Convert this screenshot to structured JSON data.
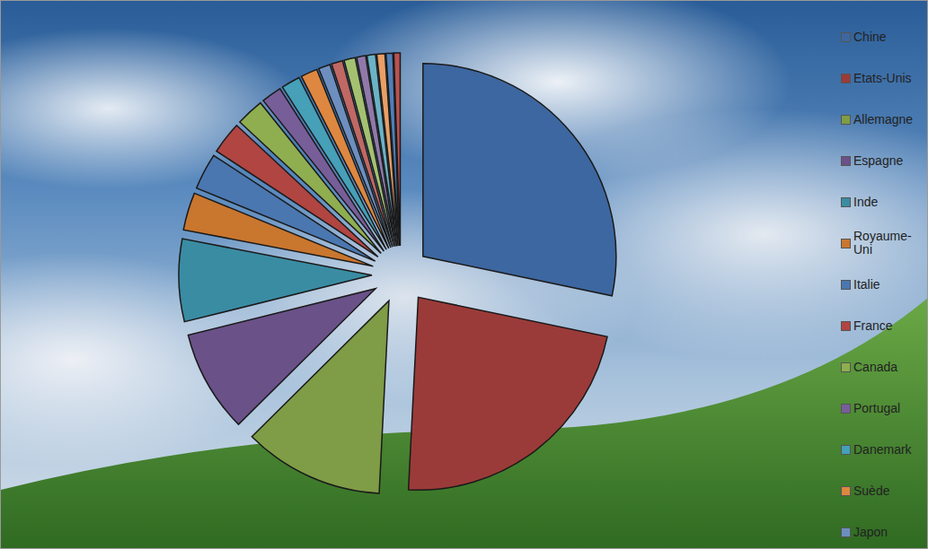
{
  "chart_data": {
    "type": "pie",
    "categories": [
      "Chine",
      "Etats-Unis",
      "Allemagne",
      "Espagne",
      "Inde",
      "Royaume-Uni",
      "Italie",
      "France",
      "Canada",
      "Portugal",
      "Danemark",
      "Suède",
      "Japon",
      null,
      null,
      null,
      null,
      null,
      null,
      null
    ],
    "values": [
      75.3,
      60.0,
      31.3,
      22.8,
      18.4,
      8.4,
      8.1,
      7.2,
      6.2,
      4.5,
      4.2,
      3.7,
      2.6,
      2.5,
      2.5,
      2.0,
      1.9,
      1.8,
      1.5,
      1.4
    ],
    "colors": [
      "#3d67a0",
      "#9b3b39",
      "#7f9c46",
      "#6a5188",
      "#3a8ca3",
      "#c9762f",
      "#4a77b0",
      "#b04542",
      "#8fae50",
      "#785e99",
      "#45a0b8",
      "#de8740",
      "#6d8fbf",
      "#c06864",
      "#a4c171",
      "#9079aa",
      "#6ab3c7",
      "#e99f65",
      "#4f7fb8",
      "#b9524f"
    ]
  }
}
